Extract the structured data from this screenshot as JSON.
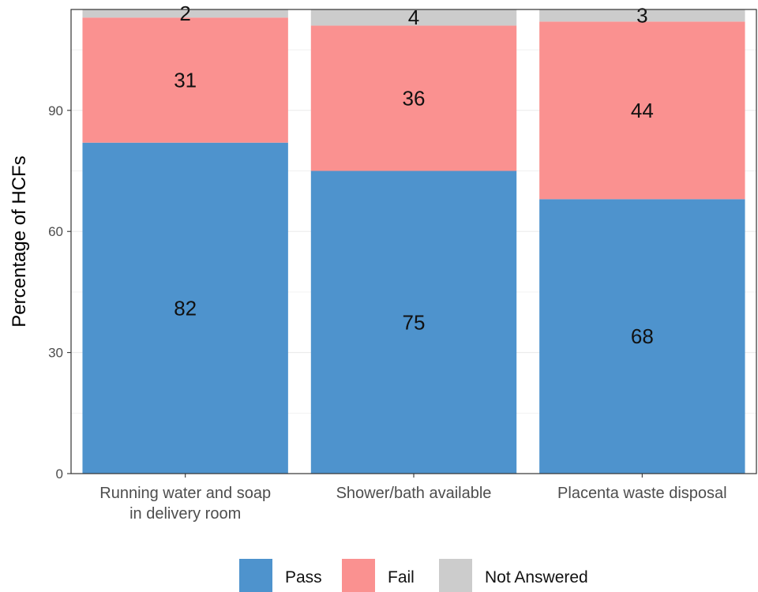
{
  "chart_data": {
    "type": "bar",
    "stacked": true,
    "title": "",
    "xlabel": "",
    "ylabel": "Percentage of HCFs",
    "ylim": [
      0,
      115
    ],
    "yticks": [
      0,
      30,
      60,
      90
    ],
    "grid": true,
    "legend_position": "bottom",
    "categories": [
      [
        "Running water and soap",
        "in delivery room"
      ],
      [
        "Shower/bath available"
      ],
      [
        "Placenta waste disposal"
      ]
    ],
    "series": [
      {
        "name": "Pass",
        "color": "#4e93cd",
        "values": [
          82,
          75,
          68
        ]
      },
      {
        "name": "Fail",
        "color": "#fa9190",
        "values": [
          31,
          36,
          44
        ]
      },
      {
        "name": "Not Answered",
        "color": "#cccccc",
        "values": [
          2,
          4,
          3
        ]
      }
    ]
  }
}
